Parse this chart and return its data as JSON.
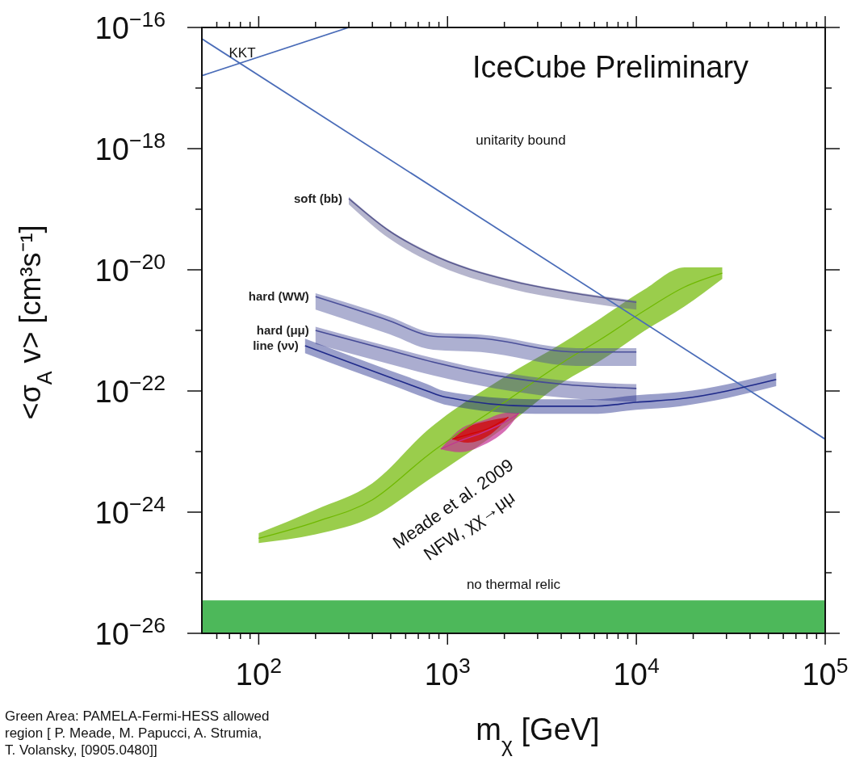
{
  "chart_data": {
    "type": "line",
    "title": "IceCube Preliminary",
    "xlabel": "m$_{χ}$ [GeV]",
    "ylabel": "<σ$_{A}$ v> [cm³s⁻¹]",
    "log": "xy",
    "grid": false,
    "legend": false,
    "marker": "none",
    "line_style": "solid",
    "xlim": [
      50,
      100000
    ],
    "ylim": [
      1e-26,
      1e-16
    ],
    "xticks": [
      {
        "value": 60,
        "label": null
      },
      {
        "value": 70,
        "label": null
      },
      {
        "value": 80,
        "label": null
      },
      {
        "value": 90,
        "label": null
      },
      {
        "value": 100,
        "label": "10$^{2}$"
      },
      {
        "value": 200,
        "label": null
      },
      {
        "value": 300,
        "label": null
      },
      {
        "value": 400,
        "label": null
      },
      {
        "value": 500,
        "label": null
      },
      {
        "value": 600,
        "label": null
      },
      {
        "value": 700,
        "label": null
      },
      {
        "value": 800,
        "label": null
      },
      {
        "value": 900,
        "label": null
      },
      {
        "value": 1000,
        "label": "10$^{3}$"
      },
      {
        "value": 2000,
        "label": null
      },
      {
        "value": 3000,
        "label": null
      },
      {
        "value": 4000,
        "label": null
      },
      {
        "value": 5000,
        "label": null
      },
      {
        "value": 6000,
        "label": null
      },
      {
        "value": 7000,
        "label": null
      },
      {
        "value": 8000,
        "label": null
      },
      {
        "value": 9000,
        "label": null
      },
      {
        "value": 10000,
        "label": "10$^{4}$"
      },
      {
        "value": 20000,
        "label": null
      },
      {
        "value": 30000,
        "label": null
      },
      {
        "value": 40000,
        "label": null
      },
      {
        "value": 50000,
        "label": null
      },
      {
        "value": 60000,
        "label": null
      },
      {
        "value": 70000,
        "label": null
      },
      {
        "value": 80000,
        "label": null
      },
      {
        "value": 90000,
        "label": null
      },
      {
        "value": 100000,
        "label": "10$^{5}$"
      }
    ],
    "yticks": [
      {
        "value": 1e-26,
        "label": "10$^{−26}$"
      },
      {
        "value": 1e-25,
        "label": null
      },
      {
        "value": 1e-24,
        "label": "10$^{−24}$"
      },
      {
        "value": 1e-23,
        "label": null
      },
      {
        "value": 1e-22,
        "label": "10$^{−22}$"
      },
      {
        "value": 1e-21,
        "label": null
      },
      {
        "value": 1e-20,
        "label": "10$^{−20}$"
      },
      {
        "value": 1e-19,
        "label": null
      },
      {
        "value": 1e-18,
        "label": "10$^{−18}$"
      },
      {
        "value": 1e-17,
        "label": null
      },
      {
        "value": 1e-16,
        "label": "10$^{−16}$"
      }
    ],
    "bands": [
      {
        "axis": "y",
        "from": 1e-26,
        "to": 3.5e-26,
        "label": "no thermal relic",
        "color": "#4db85a"
      }
    ],
    "series": [
      {
        "color": "#6fb800",
        "x": [
          100,
          200,
          400,
          790,
          2000,
          4100,
          6500,
          11000,
          18000,
          28500
        ],
        "values": [
          3.7e-25,
          6.9e-25,
          1.6e-24,
          8.8e-24,
          6.5e-23,
          3e-22,
          7.2e-22,
          2.1e-21,
          5.2e-21,
          8.8e-21
        ],
        "upper": [
          4.5e-25,
          1.1e-24,
          3e-24,
          2.3e-23,
          1.7e-22,
          6.3e-22,
          1.6e-21,
          4.7e-21,
          1.1e-20,
          1.1e-20
        ],
        "lower": [
          3.1e-25,
          4.3e-25,
          8.3e-25,
          3.4e-24,
          2.5e-23,
          1.4e-22,
          3.2e-22,
          9.8e-22,
          2.5e-21,
          7.1e-21
        ]
      },
      {
        "color": "#c43194",
        "x": [
          920,
          1160,
          1560,
          2100,
          2400
        ],
        "values": [
          1.1e-23,
          1.5e-23,
          2.1e-23,
          3.3e-23,
          4.3e-23
        ],
        "upper": [
          1.1e-23,
          2.3e-23,
          3.3e-23,
          4.4e-23,
          4.3e-23
        ],
        "lower": [
          1.1e-23,
          9.8e-24,
          1.3e-23,
          2.5e-23,
          4.3e-23
        ]
      },
      {
        "color": "#d30000",
        "x": [
          1060,
          1280,
          1640,
          2100
        ],
        "values": [
          1.6e-23,
          1.9e-23,
          2.4e-23,
          3.7e-23
        ],
        "upper": [
          1.6e-23,
          2.5e-23,
          3.2e-23,
          3.7e-23
        ],
        "lower": [
          1.6e-23,
          1.4e-23,
          1.8e-23,
          3.7e-23
        ]
      },
      {
        "color": "#4a6cb8",
        "x": [
          50,
          100000
        ],
        "values": [
          6.5e-17,
          1.6e-23
        ]
      },
      {
        "color": "#4a6cb8",
        "x": [
          50,
          300
        ],
        "values": [
          1.6e-17,
          1e-16
        ]
      },
      {
        "name": "soft (bb)",
        "color": "#5a5a90",
        "x": [
          300,
          490,
          790,
          2200,
          4300,
          10000
        ],
        "values": [
          1.5e-19,
          4.4e-20,
          1.9e-20,
          6.5e-21,
          4.3e-21,
          2.9e-21
        ],
        "lower": [
          1.2e-19,
          3.3e-20,
          1.4e-20,
          4.8e-21,
          3.2e-21,
          2.2e-21
        ],
        "upper": [
          1.6e-19,
          4.6e-20,
          2e-20,
          6.8e-21,
          4.5e-21,
          3.1e-21
        ]
      },
      {
        "name": "hard (WW)",
        "color": "#4a4f9a",
        "x": [
          200,
          490,
          840,
          1500,
          4800,
          10000
        ],
        "values": [
          3.6e-21,
          1.45e-21,
          8e-22,
          7.4e-22,
          4.4e-22,
          4.4e-22
        ],
        "lower": [
          2.2e-21,
          8.7e-22,
          4.8e-22,
          4.4e-22,
          2.6e-22,
          2.6e-22
        ],
        "upper": [
          4.1e-21,
          1.7e-21,
          9.2e-22,
          8.5e-22,
          5.1e-22,
          5.1e-22
        ]
      },
      {
        "name": "hard (μμ)",
        "color": "#454a96",
        "x": [
          200,
          490,
          840,
          1800,
          4000,
          10000
        ],
        "values": [
          1e-21,
          4.7e-22,
          3e-22,
          1.8e-22,
          1.3e-22,
          1.1e-22
        ],
        "lower": [
          6e-22,
          2.8e-22,
          1.8e-22,
          1.1e-22,
          7.8e-23,
          6.6e-23
        ],
        "upper": [
          1.15e-21,
          5.4e-22,
          3.5e-22,
          2.1e-22,
          1.5e-22,
          1.3e-22
        ]
      },
      {
        "name": "line (νν)",
        "color": "#1f2a8a",
        "x": [
          176,
          300,
          490,
          780,
          960,
          2900,
          5800,
          10000,
          17000,
          55000
        ],
        "values": [
          5.6e-22,
          3e-22,
          1.7e-22,
          1e-22,
          8e-23,
          5.6e-23,
          5.6e-23,
          6.5e-23,
          7.4e-23,
          1.55e-22
        ],
        "lower": [
          4.2e-22,
          2.25e-22,
          1.3e-22,
          7.5e-23,
          6e-23,
          4.2e-23,
          4.2e-23,
          4.9e-23,
          5.6e-23,
          1.2e-22
        ],
        "upper": [
          7.3e-22,
          3.9e-22,
          2.2e-22,
          1.3e-22,
          1e-22,
          7.3e-23,
          7.3e-23,
          8.5e-23,
          9.6e-23,
          2e-22
        ]
      }
    ],
    "annotations": [
      "KKT",
      "unitarity bound",
      "Meade et al. 2009",
      "NFW, χχ→μμ",
      "Green Area: PAMELA-Fermi-HESS allowed region [ P. Meade, M. Papucci, A. Strumia, T. Volansky, [0905.0480]]"
    ]
  }
}
